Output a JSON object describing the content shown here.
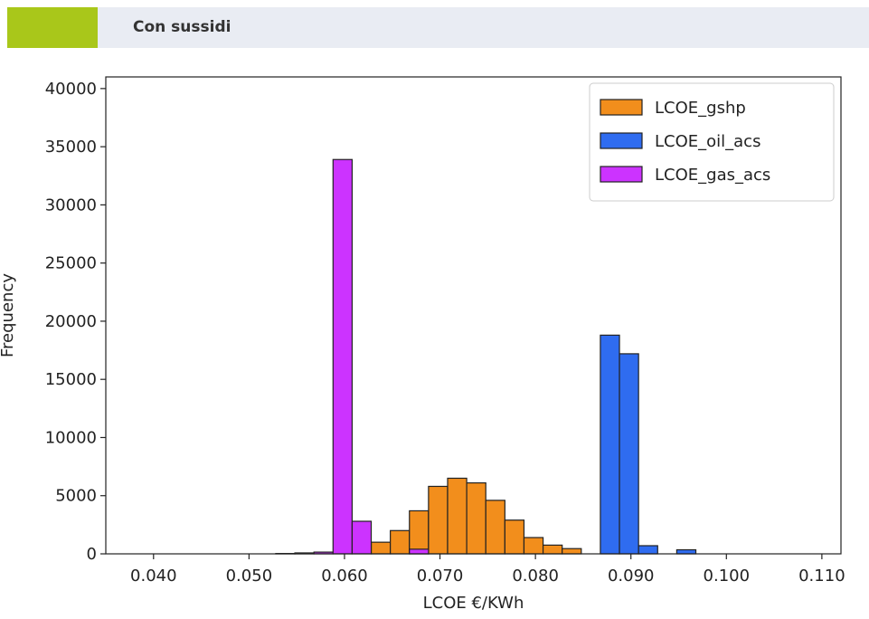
{
  "header": {
    "title": "Con sussidi",
    "accent_color": "#a9c71a",
    "background_color": "#e9ecf3"
  },
  "chart_data": {
    "type": "histogram",
    "title": "",
    "xlabel": "LCOE €/KWh",
    "ylabel": "Frequency",
    "xlim": [
      0.035,
      0.112
    ],
    "ylim": [
      0,
      41000
    ],
    "xticks": [
      0.04,
      0.05,
      0.06,
      0.07,
      0.08,
      0.09,
      0.1,
      0.11
    ],
    "xtick_labels": [
      "0.040",
      "0.050",
      "0.060",
      "0.070",
      "0.080",
      "0.090",
      "0.100",
      "0.110"
    ],
    "yticks": [
      0,
      5000,
      10000,
      15000,
      20000,
      25000,
      30000,
      35000,
      40000
    ],
    "ytick_labels": [
      "0",
      "5000",
      "10000",
      "15000",
      "20000",
      "25000",
      "30000",
      "35000",
      "40000"
    ],
    "grid": false,
    "legend": "top-right",
    "series": [
      {
        "name": "LCOE_gshp",
        "color": "#f28e1c",
        "bins": [
          {
            "x0": 0.0628,
            "x1": 0.0648,
            "count": 1000
          },
          {
            "x0": 0.0648,
            "x1": 0.0668,
            "count": 2000
          },
          {
            "x0": 0.0668,
            "x1": 0.0688,
            "count": 3700
          },
          {
            "x0": 0.0688,
            "x1": 0.0708,
            "count": 5800
          },
          {
            "x0": 0.0708,
            "x1": 0.0728,
            "count": 6500
          },
          {
            "x0": 0.0728,
            "x1": 0.0748,
            "count": 6100
          },
          {
            "x0": 0.0748,
            "x1": 0.0768,
            "count": 4600
          },
          {
            "x0": 0.0768,
            "x1": 0.0788,
            "count": 2900
          },
          {
            "x0": 0.0788,
            "x1": 0.0808,
            "count": 1400
          },
          {
            "x0": 0.0808,
            "x1": 0.0828,
            "count": 750
          },
          {
            "x0": 0.0828,
            "x1": 0.0848,
            "count": 450
          }
        ]
      },
      {
        "name": "LCOE_oil_acs",
        "color": "#2f6cf0",
        "bins": [
          {
            "x0": 0.0848,
            "x1": 0.0868,
            "count": 0
          },
          {
            "x0": 0.0868,
            "x1": 0.0888,
            "count": 18800
          },
          {
            "x0": 0.0888,
            "x1": 0.0908,
            "count": 17200
          },
          {
            "x0": 0.0908,
            "x1": 0.0928,
            "count": 700
          },
          {
            "x0": 0.0928,
            "x1": 0.0948,
            "count": 0
          },
          {
            "x0": 0.0948,
            "x1": 0.0968,
            "count": 350
          }
        ]
      },
      {
        "name": "LCOE_gas_acs",
        "color": "#cc33ff",
        "bins": [
          {
            "x0": 0.0528,
            "x1": 0.0548,
            "count": 30
          },
          {
            "x0": 0.0548,
            "x1": 0.0568,
            "count": 80
          },
          {
            "x0": 0.0568,
            "x1": 0.0588,
            "count": 150
          },
          {
            "x0": 0.0588,
            "x1": 0.0608,
            "count": 33900
          },
          {
            "x0": 0.0608,
            "x1": 0.0628,
            "count": 2800
          },
          {
            "x0": 0.0668,
            "x1": 0.0688,
            "count": 400
          }
        ]
      }
    ]
  }
}
